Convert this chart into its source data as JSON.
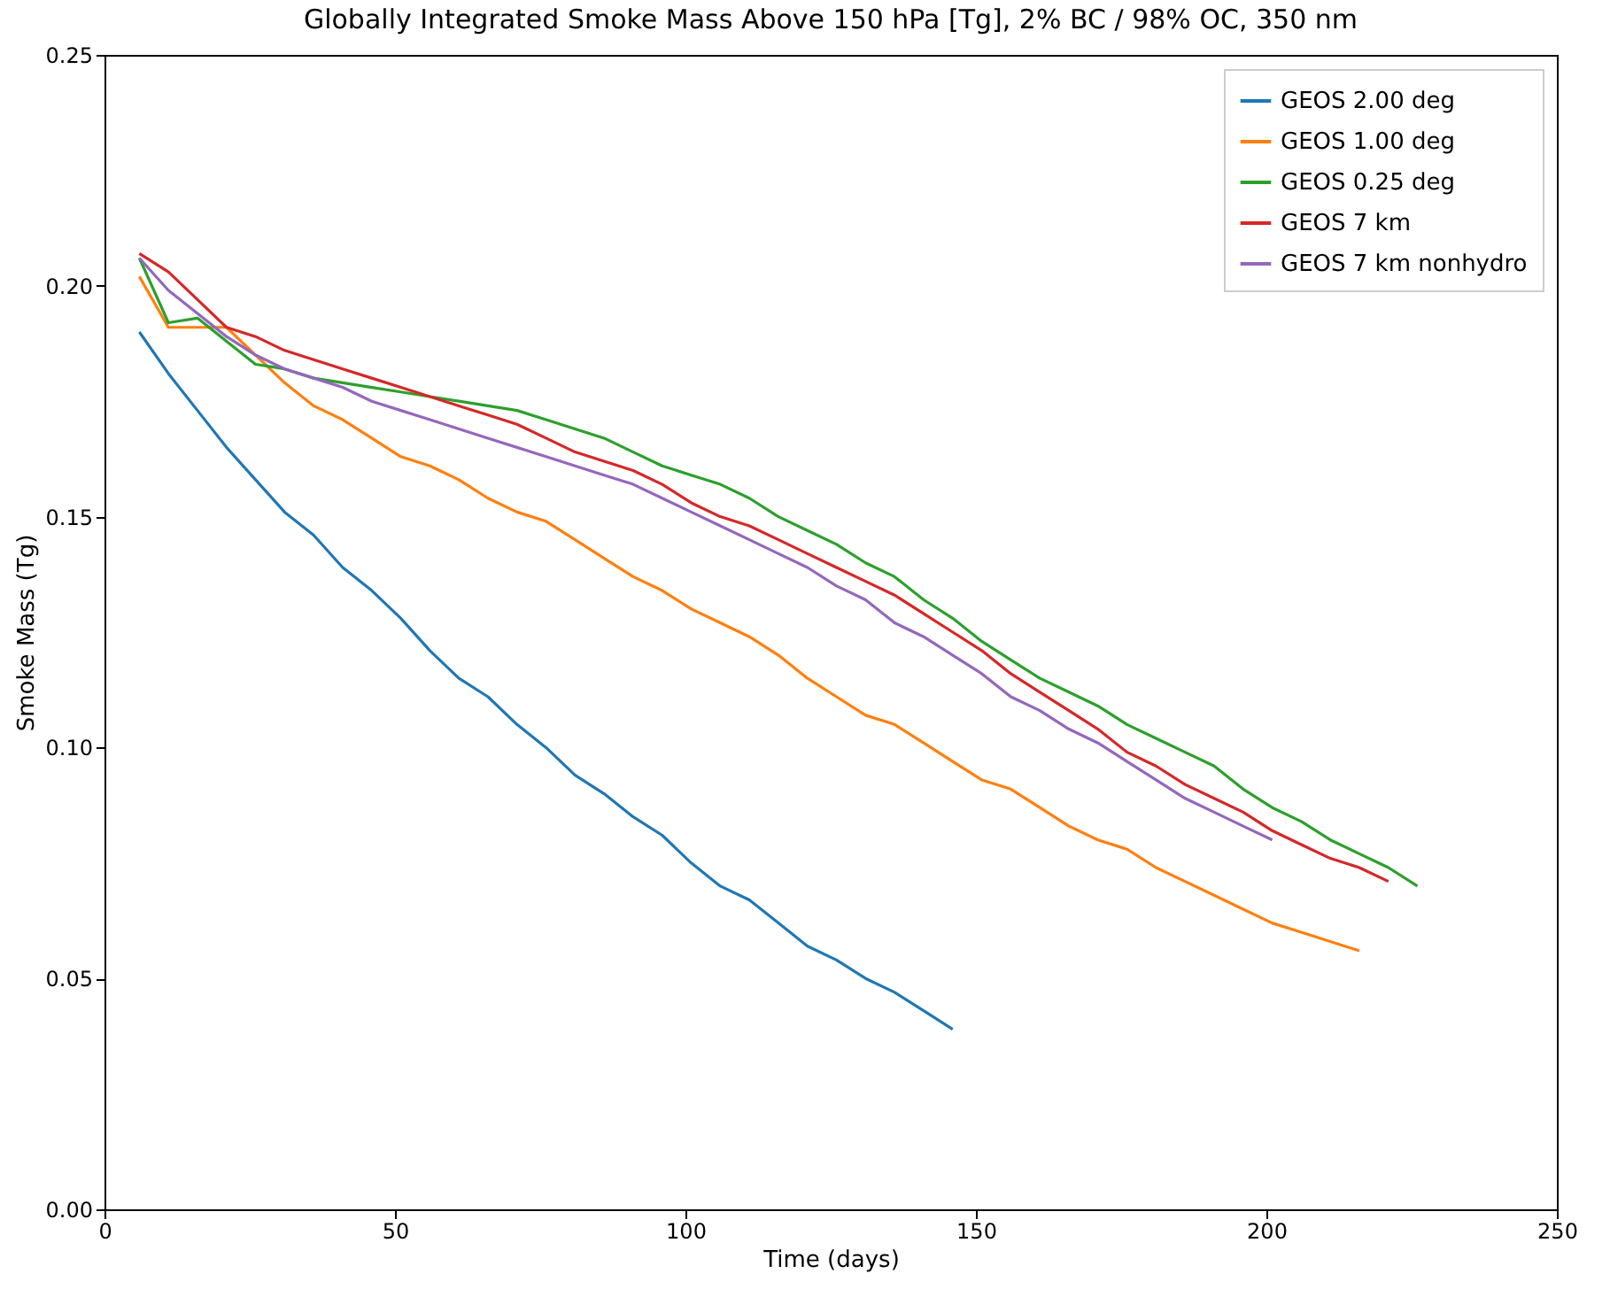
{
  "chart_data": {
    "type": "line",
    "title": "Globally Integrated Smoke Mass Above 150 hPa [Tg], 2% BC / 98% OC, 350 nm",
    "xlabel": "Time (days)",
    "ylabel": "Smoke Mass (Tg)",
    "x": [
      6,
      11,
      16,
      21,
      26,
      31,
      36,
      41,
      46,
      51,
      56,
      61,
      66,
      71,
      76,
      81,
      86,
      91,
      96,
      101,
      106,
      111,
      116,
      121,
      126,
      131,
      136,
      141,
      146,
      151,
      156,
      161,
      166,
      171,
      176,
      181,
      186,
      191,
      196,
      201,
      206,
      211,
      216,
      221,
      226
    ],
    "series": [
      {
        "name": "GEOS 2.00 deg",
        "color": "#1f77b4",
        "values": [
          0.19,
          0.181,
          0.173,
          0.165,
          0.158,
          0.151,
          0.146,
          0.139,
          0.134,
          0.128,
          0.121,
          0.115,
          0.111,
          0.105,
          0.1,
          0.094,
          0.09,
          0.085,
          0.081,
          0.075,
          0.07,
          0.067,
          0.062,
          0.057,
          0.054,
          0.05,
          0.047,
          0.043,
          0.039,
          null,
          null,
          null,
          null,
          null,
          null,
          null,
          null,
          null,
          null,
          null,
          null,
          null,
          null,
          null,
          null
        ]
      },
      {
        "name": "GEOS 1.00 deg",
        "color": "#ff7f0e",
        "values": [
          0.202,
          0.191,
          0.191,
          0.191,
          0.185,
          0.179,
          0.174,
          0.171,
          0.167,
          0.163,
          0.161,
          0.158,
          0.154,
          0.151,
          0.149,
          0.145,
          0.141,
          0.137,
          0.134,
          0.13,
          0.127,
          0.124,
          0.12,
          0.115,
          0.111,
          0.107,
          0.105,
          0.101,
          0.097,
          0.093,
          0.091,
          0.087,
          0.083,
          0.08,
          0.078,
          0.074,
          0.071,
          0.068,
          0.065,
          0.062,
          0.06,
          0.058,
          0.056,
          null,
          null
        ]
      },
      {
        "name": "GEOS 0.25 deg",
        "color": "#2ca02c",
        "values": [
          0.206,
          0.192,
          0.193,
          0.188,
          0.183,
          0.182,
          0.18,
          0.179,
          0.178,
          0.177,
          0.176,
          0.175,
          0.174,
          0.173,
          0.171,
          0.169,
          0.167,
          0.164,
          0.161,
          0.159,
          0.157,
          0.154,
          0.15,
          0.147,
          0.144,
          0.14,
          0.137,
          0.132,
          0.128,
          0.123,
          0.119,
          0.115,
          0.112,
          0.109,
          0.105,
          0.102,
          0.099,
          0.096,
          0.091,
          0.087,
          0.084,
          0.08,
          0.077,
          0.074,
          0.07
        ]
      },
      {
        "name": "GEOS 7 km",
        "color": "#d62728",
        "values": [
          0.207,
          0.203,
          0.197,
          0.191,
          0.189,
          0.186,
          0.184,
          0.182,
          0.18,
          0.178,
          0.176,
          0.174,
          0.172,
          0.17,
          0.167,
          0.164,
          0.162,
          0.16,
          0.157,
          0.153,
          0.15,
          0.148,
          0.145,
          0.142,
          0.139,
          0.136,
          0.133,
          0.129,
          0.125,
          0.121,
          0.116,
          0.112,
          0.108,
          0.104,
          0.099,
          0.096,
          0.092,
          0.089,
          0.086,
          0.082,
          0.079,
          0.076,
          0.074,
          0.071,
          null
        ]
      },
      {
        "name": "GEOS 7 km nonhydro",
        "color": "#9467bd",
        "values": [
          0.206,
          0.199,
          0.194,
          0.189,
          0.185,
          0.182,
          0.18,
          0.178,
          0.175,
          0.173,
          0.171,
          0.169,
          0.167,
          0.165,
          0.163,
          0.161,
          0.159,
          0.157,
          0.154,
          0.151,
          0.148,
          0.145,
          0.142,
          0.139,
          0.135,
          0.132,
          0.127,
          0.124,
          0.12,
          0.116,
          0.111,
          0.108,
          0.104,
          0.101,
          0.097,
          0.093,
          0.089,
          0.086,
          0.083,
          0.08,
          null,
          null,
          null,
          null,
          null
        ]
      }
    ],
    "xlim": [
      0,
      250
    ],
    "xticks": [
      0,
      50,
      100,
      150,
      200,
      250
    ],
    "ylim": [
      0,
      0.25
    ],
    "yticks": [
      {
        "value": 0,
        "label": "0.00"
      },
      {
        "value": 0.05,
        "label": "0.05"
      },
      {
        "value": 0.1,
        "label": "0.10"
      },
      {
        "value": 0.15,
        "label": "0.15"
      },
      {
        "value": 0.2,
        "label": "0.20"
      },
      {
        "value": 0.25,
        "label": "0.25"
      }
    ],
    "legend": "top right",
    "grid": false,
    "marker": "none",
    "line_style": "solid"
  }
}
